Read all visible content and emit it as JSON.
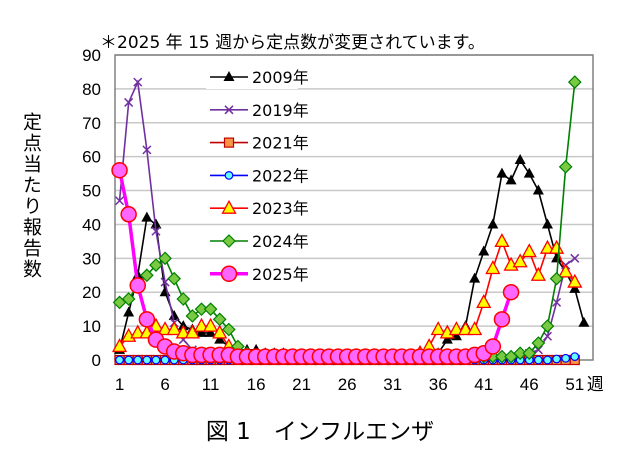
{
  "chart_data": {
    "type": "line",
    "note": "＊2025 年 15 週から定点数が変更されています。",
    "title": "図 1　インフルエンザ",
    "ylabel": "定点当たり報告数",
    "xlabel": "週",
    "ylim": [
      0,
      90
    ],
    "yticks": [
      "0",
      "10",
      "20",
      "30",
      "40",
      "50",
      "60",
      "70",
      "80",
      "90"
    ],
    "xticks": [
      "1",
      "6",
      "11",
      "16",
      "21",
      "26",
      "31",
      "36",
      "41",
      "46",
      "51"
    ],
    "grid": "horizontal",
    "legend_position": "top-left inside",
    "x": [
      1,
      2,
      3,
      4,
      5,
      6,
      7,
      8,
      9,
      10,
      11,
      12,
      13,
      14,
      15,
      16,
      17,
      18,
      19,
      20,
      21,
      22,
      23,
      24,
      25,
      26,
      27,
      28,
      29,
      30,
      31,
      32,
      33,
      34,
      35,
      36,
      37,
      38,
      39,
      40,
      41,
      42,
      43,
      44,
      45,
      46,
      47,
      48,
      49,
      50,
      51,
      52
    ],
    "series": [
      {
        "name": "2009年",
        "color": "#000000",
        "marker": "triangle-filled",
        "values": [
          3,
          14,
          25,
          42,
          40,
          20,
          13,
          10,
          9,
          8,
          8,
          6,
          4,
          3,
          3,
          3,
          2,
          2,
          2,
          1,
          1,
          1,
          1,
          1,
          1,
          1,
          1,
          1,
          1,
          1,
          1,
          1,
          1,
          1,
          1,
          2,
          6,
          7,
          10,
          24,
          32,
          40,
          55,
          53,
          59,
          55,
          50,
          40,
          30,
          26,
          21,
          11
        ]
      },
      {
        "name": "2019年",
        "color": "#7030a0",
        "marker": "x",
        "values": [
          47,
          76,
          82,
          62,
          38,
          23,
          11,
          6,
          3,
          1,
          1,
          1,
          0,
          0,
          0,
          0,
          0,
          0,
          0,
          0,
          0,
          0,
          0,
          0,
          0,
          0,
          0,
          0,
          0,
          0,
          0,
          0,
          0,
          0,
          0,
          0,
          0,
          0,
          0,
          0,
          0,
          0,
          0,
          0,
          1,
          2,
          3,
          7,
          17,
          28,
          30,
          null
        ]
      },
      {
        "name": "2021年",
        "color": "#c00000",
        "marker": "square",
        "values": [
          0,
          0,
          0,
          0,
          0,
          0,
          0,
          0,
          0,
          0,
          0,
          0,
          0,
          0,
          0,
          0,
          0,
          0,
          0,
          0,
          0,
          0,
          0,
          0,
          0,
          0,
          0,
          0,
          0,
          0,
          0,
          0,
          0,
          0,
          0,
          0,
          0,
          0,
          0,
          0,
          0,
          0,
          0,
          0,
          0,
          0,
          0,
          0,
          0,
          0,
          0,
          null
        ]
      },
      {
        "name": "2022年",
        "color": "#0000ff",
        "marker": "circle-small",
        "values": [
          0,
          0,
          0,
          0,
          0,
          0,
          0,
          0,
          0,
          0,
          0,
          0,
          0,
          0,
          0,
          0,
          0,
          0,
          0,
          0,
          0,
          0,
          0,
          0,
          0,
          0,
          0,
          0,
          0,
          0,
          0,
          0,
          0,
          0,
          0,
          0,
          0,
          0,
          0,
          0,
          0,
          0,
          0,
          0,
          0,
          0,
          0,
          0,
          0.3,
          0.5,
          1,
          null
        ]
      },
      {
        "name": "2023年",
        "color": "#ff0000",
        "marker": "triangle-yellow",
        "values": [
          4,
          7,
          8,
          8,
          10,
          9,
          9,
          8,
          8,
          10,
          10,
          8,
          4,
          2,
          1,
          1,
          1,
          1,
          1,
          1,
          1,
          1,
          1,
          1,
          1,
          1,
          1,
          1,
          1,
          1,
          1,
          1,
          1,
          2,
          4,
          9,
          8,
          9,
          9,
          9,
          17,
          27,
          35,
          28,
          29,
          32,
          25,
          33,
          33,
          26,
          23,
          null
        ]
      },
      {
        "name": "2024年",
        "color": "#008000",
        "marker": "diamond",
        "values": [
          17,
          18,
          22,
          25,
          28,
          30,
          24,
          18,
          13,
          15,
          15,
          12,
          9,
          4,
          2,
          1,
          1,
          1,
          1,
          1,
          1,
          1,
          1,
          1,
          1,
          1,
          1,
          1,
          1,
          1,
          1,
          1,
          1,
          1,
          1,
          1,
          1,
          1,
          1,
          1,
          1,
          1,
          1,
          1,
          2,
          2,
          5,
          10,
          24,
          57,
          82,
          null
        ]
      },
      {
        "name": "2025年",
        "color": "#ff00ff",
        "marker": "circle-large",
        "values": [
          56,
          43,
          22,
          12,
          6,
          4,
          2.5,
          2,
          1.5,
          1.5,
          1.5,
          1.5,
          1.5,
          1,
          1,
          1,
          1,
          1,
          1,
          1,
          1,
          1,
          1,
          1,
          1,
          1,
          1,
          1,
          1,
          1,
          1,
          1,
          1,
          1,
          1,
          1,
          1,
          1,
          1,
          1.5,
          2,
          4,
          12,
          20,
          null,
          null,
          null,
          null,
          null,
          null,
          null,
          null
        ]
      }
    ]
  }
}
